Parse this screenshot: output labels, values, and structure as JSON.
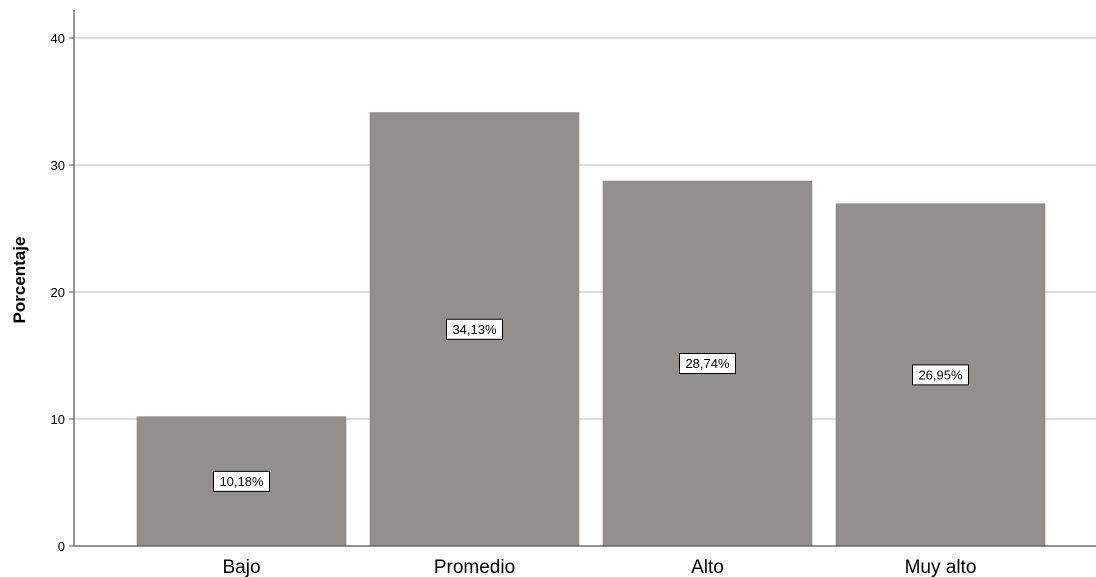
{
  "chart_data": {
    "type": "bar",
    "title": "",
    "xlabel": "",
    "ylabel": "Porcentaje",
    "categories": [
      "Bajo",
      "Promedio",
      "Alto",
      "Muy alto"
    ],
    "values": [
      10.18,
      34.13,
      28.74,
      26.95
    ],
    "data_labels": [
      "10,18%",
      "34,13%",
      "28,74%",
      "26,95%"
    ],
    "ylim": [
      0,
      42
    ],
    "yticks": [
      0,
      10,
      20,
      30,
      40
    ],
    "ytick_labels": [
      "0",
      "10",
      "20",
      "30",
      "40"
    ],
    "grid": "horizontal",
    "legend": "none",
    "bar_color": "#938f8e",
    "grid_color": "#d4d4d4",
    "axis_color": "#555555"
  }
}
